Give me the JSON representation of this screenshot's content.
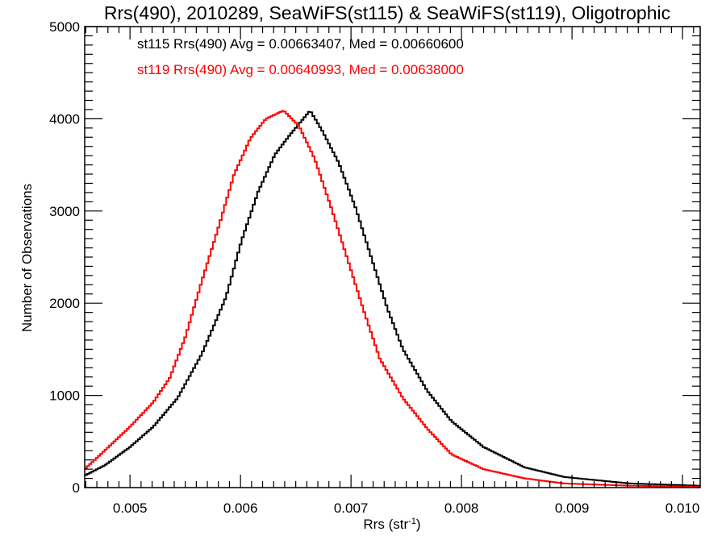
{
  "chart_data": {
    "type": "line",
    "style": "step-histogram",
    "title": "Rrs(490), 2010289, SeaWiFS(st115) & SeaWiFS(st119), Oligotrophic",
    "xlabel_base": "Rrs (str",
    "xlabel_sup": "-1",
    "xlabel_tail": ")",
    "ylabel": "Number of Observations",
    "xlim": [
      0.00459,
      0.01016
    ],
    "ylim": [
      0,
      5000
    ],
    "grid": false,
    "x_ticks": [
      0.005,
      0.006,
      0.007,
      0.008,
      0.009,
      0.01
    ],
    "x_tick_labels": [
      "0.005",
      "0.006",
      "0.007",
      "0.008",
      "0.009",
      "0.010"
    ],
    "x_minor_step": 0.0001,
    "y_ticks": [
      0,
      1000,
      2000,
      3000,
      4000,
      5000
    ],
    "y_tick_labels": [
      "0",
      "1000",
      "2000",
      "3000",
      "4000",
      "5000"
    ],
    "y_minor_step": 100,
    "bin_width": 2e-05,
    "legend_position": "top-left",
    "series": [
      {
        "name": "st115",
        "color": "#000000",
        "legend": "st115 Rrs(490) Avg = 0.00663407, Med = 0.00660600",
        "x": [
          0.00459,
          0.00477,
          0.005,
          0.00521,
          0.00543,
          0.00565,
          0.00587,
          0.00601,
          0.00616,
          0.00631,
          0.00645,
          0.00663,
          0.00674,
          0.00689,
          0.00704,
          0.00718,
          0.00733,
          0.00747,
          0.00769,
          0.00791,
          0.0082,
          0.00857,
          0.00893,
          0.00952,
          0.01016
        ],
        "y": [
          130,
          240,
          440,
          660,
          970,
          1450,
          2070,
          2680,
          3210,
          3610,
          3830,
          4090,
          3870,
          3520,
          3040,
          2510,
          1940,
          1500,
          1050,
          720,
          440,
          220,
          115,
          45,
          20
        ]
      },
      {
        "name": "st119",
        "color": "#ff0000",
        "legend": "st119 Rrs(490) Avg = 0.00640993, Med = 0.00638000",
        "x": [
          0.00459,
          0.00477,
          0.005,
          0.00521,
          0.00536,
          0.0055,
          0.00565,
          0.0058,
          0.00594,
          0.00609,
          0.00623,
          0.00639,
          0.00653,
          0.00667,
          0.00682,
          0.00696,
          0.00711,
          0.00726,
          0.00747,
          0.00769,
          0.00791,
          0.0082,
          0.00857,
          0.00893,
          0.00952,
          0.01016
        ],
        "y": [
          200,
          400,
          660,
          925,
          1190,
          1630,
          2240,
          2820,
          3390,
          3790,
          4000,
          4090,
          3920,
          3570,
          3040,
          2510,
          1940,
          1400,
          970,
          640,
          360,
          200,
          100,
          45,
          20,
          10
        ]
      }
    ]
  }
}
